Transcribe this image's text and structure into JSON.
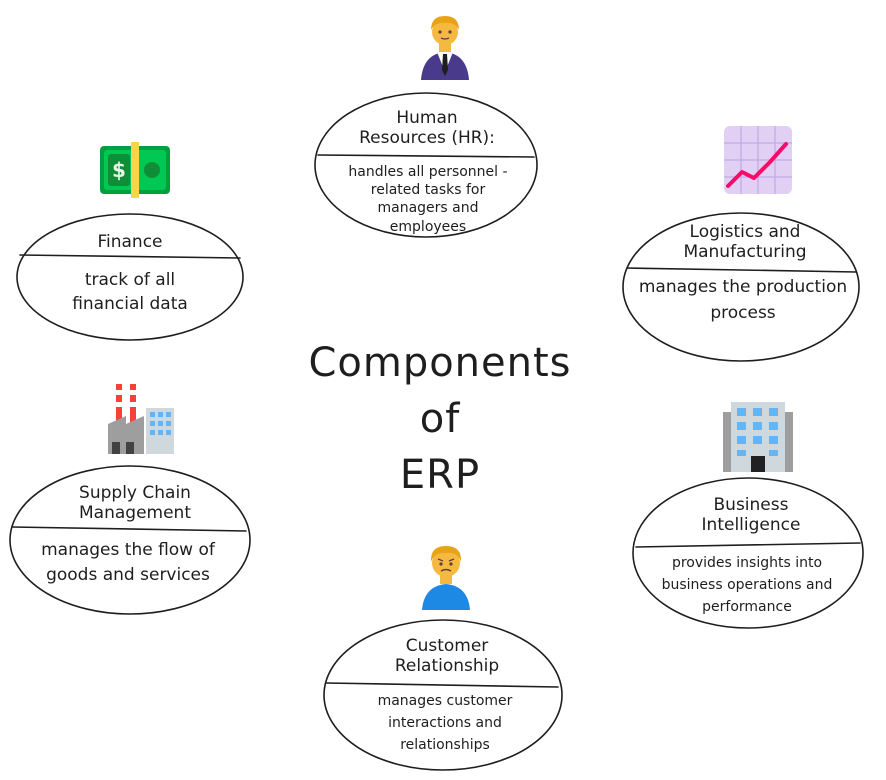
{
  "title_lines": [
    "Components",
    "of",
    "ERP"
  ],
  "components": {
    "hr": {
      "title": "Human Resources (HR):",
      "description": "handles all personnel -related tasks for managers and employees",
      "icon": "office-worker-icon"
    },
    "logistics": {
      "title": "Logistics and Manufacturing",
      "description": "manages the production process",
      "icon": "chart-increasing-icon"
    },
    "finance": {
      "title": "Finance",
      "description": "track of all financial data",
      "icon": "money-bill-icon"
    },
    "supply_chain": {
      "title": "Supply Chain Management",
      "description": "manages the flow of goods and services",
      "icon": "factory-icon"
    },
    "business_intelligence": {
      "title": "Business Intelligence",
      "description": "provides insights into business operations and performance",
      "icon": "office-building-icon"
    },
    "crm": {
      "title": "Customer Relationship",
      "description": "manages customer interactions and relationships",
      "icon": "person-frowning-icon"
    }
  },
  "colors": {
    "stroke": "#1e1e1e",
    "money_green": "#00c853",
    "chart_line": "#f70a6a",
    "chart_bg": "#e1cff4",
    "suit": "#4a3a8c",
    "shirt_blue": "#1e88e5",
    "skin": "#f5b942"
  }
}
